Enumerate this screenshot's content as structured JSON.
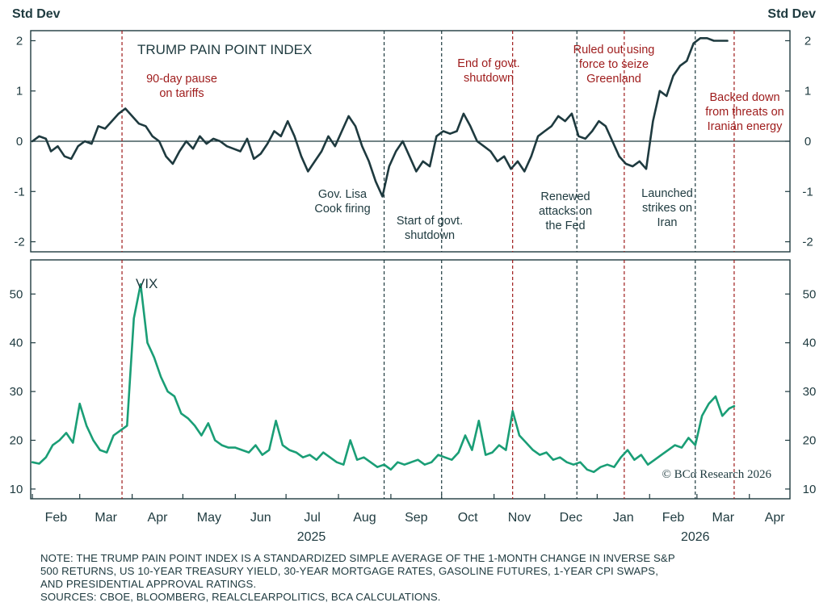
{
  "chart_data": [
    {
      "type": "line",
      "title": "TRUMP PAIN POINT INDEX",
      "ylabel_left": "Std Dev",
      "ylabel_right": "Std Dev",
      "ylim": [
        -2.2,
        2.2
      ],
      "yticks": [
        2,
        1,
        0,
        -1,
        -2
      ],
      "ytick_labels": [
        "2",
        "1",
        "0",
        "-1",
        "-2"
      ],
      "line_color": "#1e3a3f",
      "series": [
        {
          "x": [
            "2025-02-01",
            "2025-02-05",
            "2025-02-09",
            "2025-02-12",
            "2025-02-16",
            "2025-02-20",
            "2025-02-24",
            "2025-02-28",
            "2025-03-04",
            "2025-03-08",
            "2025-03-12",
            "2025-03-16",
            "2025-03-20",
            "2025-03-24",
            "2025-03-28",
            "2025-04-01",
            "2025-04-05",
            "2025-04-09",
            "2025-04-13",
            "2025-04-17",
            "2025-04-21",
            "2025-04-25",
            "2025-04-29",
            "2025-05-03",
            "2025-05-07",
            "2025-05-11",
            "2025-05-15",
            "2025-05-19",
            "2025-05-23",
            "2025-05-27",
            "2025-05-31",
            "2025-06-04",
            "2025-06-08",
            "2025-06-12",
            "2025-06-16",
            "2025-06-20",
            "2025-06-24",
            "2025-06-28",
            "2025-07-02",
            "2025-07-06",
            "2025-07-10",
            "2025-07-14",
            "2025-07-18",
            "2025-07-22",
            "2025-07-26",
            "2025-07-30",
            "2025-08-03",
            "2025-08-07",
            "2025-08-11",
            "2025-08-15",
            "2025-08-19",
            "2025-08-23",
            "2025-08-27",
            "2025-08-31",
            "2025-09-04",
            "2025-09-08",
            "2025-09-12",
            "2025-09-16",
            "2025-09-20",
            "2025-09-24",
            "2025-09-28",
            "2025-10-02",
            "2025-10-06",
            "2025-10-10",
            "2025-10-14",
            "2025-10-18",
            "2025-10-22",
            "2025-10-26",
            "2025-10-30",
            "2025-11-03",
            "2025-11-07",
            "2025-11-11",
            "2025-11-15",
            "2025-11-19",
            "2025-11-23",
            "2025-11-27",
            "2025-12-01",
            "2025-12-05",
            "2025-12-09",
            "2025-12-13",
            "2025-12-17",
            "2025-12-21",
            "2025-12-25",
            "2025-12-29",
            "2026-01-02",
            "2026-01-06",
            "2026-01-10",
            "2026-01-14",
            "2026-01-18",
            "2026-01-22",
            "2026-01-26",
            "2026-01-30",
            "2026-02-03",
            "2026-02-07",
            "2026-02-11",
            "2026-02-15",
            "2026-02-19",
            "2026-02-23",
            "2026-02-27",
            "2026-03-03",
            "2026-03-07",
            "2026-03-11",
            "2026-03-15",
            "2026-03-19"
          ],
          "values": [
            0.0,
            0.1,
            0.05,
            -0.2,
            -0.1,
            -0.3,
            -0.35,
            -0.1,
            0.0,
            -0.05,
            0.3,
            0.25,
            0.4,
            0.55,
            0.65,
            0.5,
            0.35,
            0.3,
            0.1,
            0.0,
            -0.3,
            -0.45,
            -0.2,
            0.0,
            -0.15,
            0.1,
            -0.05,
            0.05,
            0.0,
            -0.1,
            -0.15,
            -0.2,
            0.05,
            -0.35,
            -0.25,
            -0.05,
            0.2,
            0.1,
            0.4,
            0.1,
            -0.3,
            -0.6,
            -0.4,
            -0.2,
            0.1,
            -0.1,
            0.2,
            0.5,
            0.3,
            -0.1,
            -0.4,
            -0.8,
            -1.1,
            -0.5,
            -0.2,
            0.0,
            -0.3,
            -0.6,
            -0.4,
            -0.5,
            0.1,
            0.2,
            0.15,
            0.2,
            0.55,
            0.3,
            0.0,
            -0.1,
            -0.2,
            -0.4,
            -0.3,
            -0.55,
            -0.4,
            -0.6,
            -0.3,
            0.1,
            0.2,
            0.3,
            0.5,
            0.4,
            0.55,
            0.1,
            0.05,
            0.2,
            0.4,
            0.3,
            0.0,
            -0.3,
            -0.45,
            -0.5,
            -0.4,
            -0.55,
            0.4,
            1.0,
            0.9,
            1.3,
            1.5,
            1.6,
            1.95,
            2.05,
            2.05,
            2.0,
            2.0,
            2.0
          ],
          "values_note": "approximate readings"
        }
      ],
      "annotations": [
        {
          "date": "2025-03-26",
          "text": [
            "90-day pause",
            "on tariffs"
          ],
          "color": "#9e1b1b"
        },
        {
          "date": "2025-08-28",
          "text": [
            "Gov. Lisa",
            "Cook firing"
          ],
          "color": "#1e3a3f"
        },
        {
          "date": "2025-10-01",
          "text": [
            "Start of govt.",
            "shutdown"
          ],
          "color": "#1e3a3f"
        },
        {
          "date": "2025-11-12",
          "text": [
            "End of govt.",
            "shutdown"
          ],
          "color": "#9e1b1b"
        },
        {
          "date": "2025-12-20",
          "text": [
            "Renewed",
            "attacks on",
            "the Fed"
          ],
          "color": "#1e3a3f"
        },
        {
          "date": "2026-01-17",
          "text": [
            "Ruled out using",
            "force to seize",
            "Greenland"
          ],
          "color": "#9e1b1b"
        },
        {
          "date": "2026-02-28",
          "text": [
            "Launched",
            "strikes on",
            "Iran"
          ],
          "color": "#1e3a3f"
        },
        {
          "date": "2026-03-23",
          "text": [
            "Backed down",
            "from threats on",
            "Iranian energy"
          ],
          "color": "#9e1b1b"
        }
      ]
    },
    {
      "type": "line",
      "title": "VIX",
      "ylim": [
        8,
        57
      ],
      "yticks": [
        10,
        20,
        30,
        40,
        50
      ],
      "ytick_labels": [
        "10",
        "20",
        "30",
        "40",
        "50"
      ],
      "line_color": "#1a9e76",
      "series": [
        {
          "x": [
            "2025-02-01",
            "2025-02-05",
            "2025-02-09",
            "2025-02-13",
            "2025-02-17",
            "2025-02-21",
            "2025-02-25",
            "2025-03-01",
            "2025-03-05",
            "2025-03-09",
            "2025-03-13",
            "2025-03-17",
            "2025-03-21",
            "2025-03-25",
            "2025-03-29",
            "2025-04-02",
            "2025-04-06",
            "2025-04-10",
            "2025-04-14",
            "2025-04-18",
            "2025-04-22",
            "2025-04-26",
            "2025-04-30",
            "2025-05-04",
            "2025-05-08",
            "2025-05-12",
            "2025-05-16",
            "2025-05-20",
            "2025-05-24",
            "2025-05-28",
            "2025-06-01",
            "2025-06-05",
            "2025-06-09",
            "2025-06-13",
            "2025-06-17",
            "2025-06-21",
            "2025-06-25",
            "2025-06-29",
            "2025-07-03",
            "2025-07-07",
            "2025-07-11",
            "2025-07-15",
            "2025-07-19",
            "2025-07-23",
            "2025-07-27",
            "2025-07-31",
            "2025-08-04",
            "2025-08-08",
            "2025-08-12",
            "2025-08-16",
            "2025-08-20",
            "2025-08-24",
            "2025-08-28",
            "2025-09-01",
            "2025-09-05",
            "2025-09-09",
            "2025-09-13",
            "2025-09-17",
            "2025-09-21",
            "2025-09-25",
            "2025-09-29",
            "2025-10-03",
            "2025-10-07",
            "2025-10-11",
            "2025-10-15",
            "2025-10-19",
            "2025-10-23",
            "2025-10-27",
            "2025-10-31",
            "2025-11-04",
            "2025-11-08",
            "2025-11-12",
            "2025-11-16",
            "2025-11-20",
            "2025-11-24",
            "2025-11-28",
            "2025-12-02",
            "2025-12-06",
            "2025-12-10",
            "2025-12-14",
            "2025-12-18",
            "2025-12-22",
            "2025-12-26",
            "2025-12-30",
            "2026-01-03",
            "2026-01-07",
            "2026-01-11",
            "2026-01-15",
            "2026-01-19",
            "2026-01-23",
            "2026-01-27",
            "2026-01-31",
            "2026-02-04",
            "2026-02-08",
            "2026-02-12",
            "2026-02-16",
            "2026-02-20",
            "2026-02-24",
            "2026-02-28",
            "2026-03-04",
            "2026-03-08",
            "2026-03-12",
            "2026-03-16",
            "2026-03-20",
            "2026-03-23"
          ],
          "values": [
            15.5,
            15.2,
            16.5,
            19,
            20,
            21.5,
            19.5,
            27.5,
            23,
            20,
            18,
            17.5,
            21,
            22,
            23,
            45,
            52,
            40,
            37,
            33,
            30,
            29,
            25.5,
            24.5,
            23,
            21,
            23.5,
            20,
            19,
            18.5,
            18.5,
            18,
            17.5,
            19,
            17,
            18,
            24,
            19,
            18,
            17.5,
            16.5,
            17,
            16,
            17.5,
            16.5,
            15.5,
            15,
            20,
            16,
            16.5,
            15.5,
            14.5,
            15,
            14,
            15.5,
            15,
            15.5,
            16,
            15,
            15.5,
            17,
            16.5,
            16,
            17.5,
            21,
            18,
            24,
            17,
            17.5,
            19,
            18,
            26,
            21,
            19.5,
            18,
            17,
            17.5,
            16,
            16.5,
            15.5,
            15,
            15.5,
            14,
            13.5,
            14.5,
            15,
            14.5,
            16.5,
            18,
            16,
            17,
            15,
            16,
            17,
            18,
            19,
            18.5,
            20.5,
            19,
            25,
            27.5,
            29,
            25,
            26.5,
            27
          ],
          "values_note": "approximate readings"
        }
      ]
    }
  ],
  "x_axis": {
    "month_labels": [
      "Feb",
      "Mar",
      "Apr",
      "May",
      "Jun",
      "Jul",
      "Aug",
      "Sep",
      "Oct",
      "Nov",
      "Dec",
      "Jan",
      "Feb",
      "Mar",
      "Apr"
    ],
    "year_labels": [
      "2025",
      "2026"
    ]
  },
  "watermark": "© BCα Research 2026",
  "note": {
    "line1": "NOTE: THE TRUMP PAIN POINT INDEX IS A STANDARDIZED SIMPLE AVERAGE OF THE 1-MONTH CHANGE IN INVERSE S&P",
    "line2": "500 RETURNS, US 10-YEAR TREASURY YIELD, 30-YEAR MORTGAGE RATES, GASOLINE FUTURES, 1-YEAR CPI SWAPS,",
    "line3": "AND PRESIDENTIAL APPROVAL RATINGS.",
    "line4": "SOURCES: CBOE, BLOOMBERG, REALCLEARPOLITICS, BCA CALCULATIONS."
  },
  "colors": {
    "index_line": "#1e3a3f",
    "vix_line": "#1a9e76",
    "event_red": "#9e1b1b",
    "event_dark": "#1e3a3f",
    "frame": "#1e3a3f"
  }
}
